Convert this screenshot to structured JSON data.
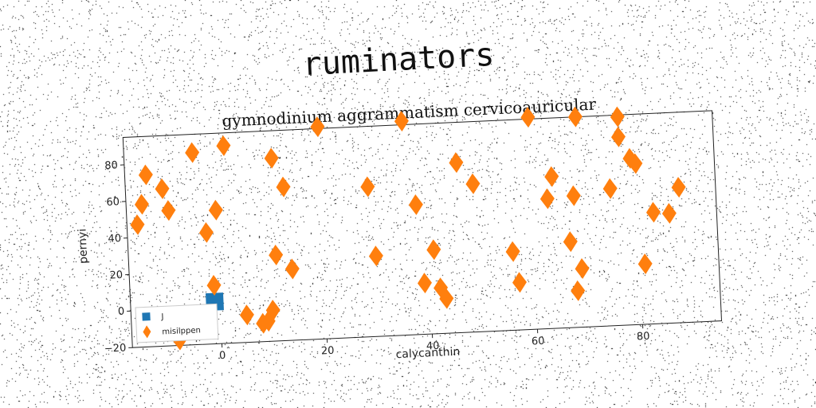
{
  "suptitle": "ruminators",
  "chart_data": {
    "type": "scatter",
    "title": "gymnodinium aggrammatism cervicoauricular",
    "xlabel": "calycanthin",
    "ylabel": "pernyi",
    "xlim": [
      -17,
      95
    ],
    "ylim": [
      -20,
      95
    ],
    "xticks": [
      0,
      20,
      40,
      60,
      80
    ],
    "yticks": [
      -20,
      0,
      20,
      40,
      60,
      80
    ],
    "legend_position": "lower-left",
    "grid": false,
    "series": [
      {
        "name": "J",
        "marker": "square",
        "color": "#1f77b4",
        "x": [
          -1
        ],
        "y": [
          3
        ]
      },
      {
        "name": "misilppen",
        "marker": "thin_diamond",
        "color": "#ff7f0e",
        "x": [
          -15,
          -14,
          -13,
          -10,
          -9,
          -8,
          -4,
          -2,
          -1,
          0,
          2,
          5,
          8,
          9,
          10,
          11,
          11,
          13,
          14,
          20,
          29,
          30,
          36,
          38,
          39,
          41,
          42,
          43,
          46,
          49,
          56,
          57,
          60,
          63,
          64,
          67,
          68,
          68,
          69,
          69,
          75,
          77,
          77,
          79,
          80,
          81,
          83,
          86,
          88
        ],
        "y": [
          47,
          58,
          74,
          66,
          54,
          -17,
          85,
          41,
          12,
          53,
          88,
          -5,
          -10,
          -9,
          -3,
          27,
          80,
          64,
          19,
          96,
          62,
          24,
          97,
          51,
          8,
          26,
          5,
          -1,
          73,
          61,
          23,
          6,
          96,
          51,
          63,
          27,
          0,
          52,
          95,
          12,
          55,
          94,
          83,
          71,
          68,
          13,
          41,
          40,
          54
        ]
      }
    ]
  }
}
